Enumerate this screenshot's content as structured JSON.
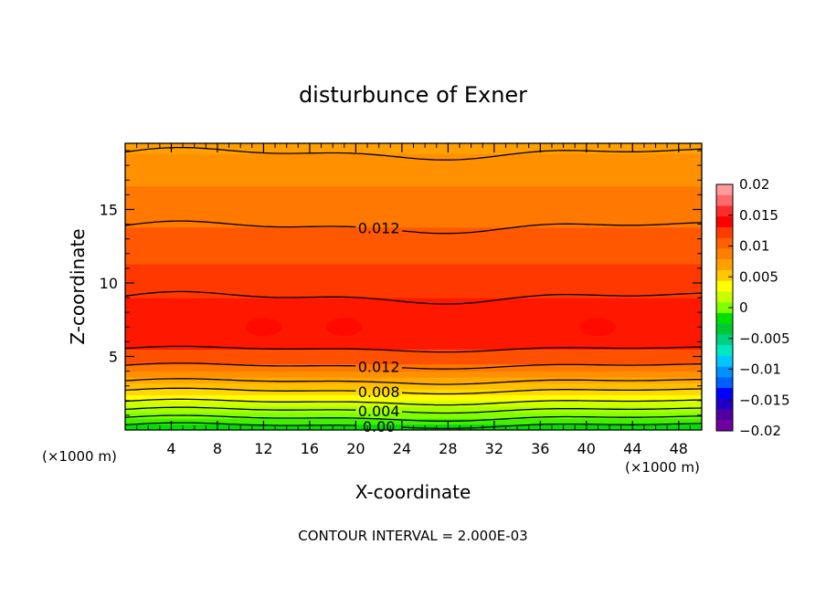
{
  "chart_data": {
    "type": "heatmap",
    "title": "disturbunce of Exner",
    "xlabel": "X-coordinate",
    "ylabel": "Z-coordinate",
    "x_unit": "(×1000 m)",
    "x_unit_right": "(×1000 m)",
    "xlim": [
      0,
      50
    ],
    "ylim": [
      0,
      19.5
    ],
    "x_ticks": [
      "4",
      "8",
      "12",
      "16",
      "20",
      "24",
      "28",
      "32",
      "36",
      "40",
      "44",
      "48"
    ],
    "y_ticks": [
      "5",
      "10",
      "15"
    ],
    "footer": "CONTOUR INTERVAL = 2.000E-03",
    "colorbar": {
      "labels": [
        "0.02",
        "0.015",
        "0.01",
        "0.005",
        "0",
        "−0.005",
        "−0.01",
        "−0.015",
        "−0.02"
      ],
      "values": [
        0.02,
        0.015,
        0.01,
        0.005,
        0,
        -0.005,
        -0.01,
        -0.015,
        -0.02
      ],
      "colors": [
        "#ff9a9a",
        "#ff6a6a",
        "#ff2a2a",
        "#ff0000",
        "#ff3c00",
        "#ff6000",
        "#ff8000",
        "#ffa000",
        "#ffc800",
        "#ffff00",
        "#c8ff00",
        "#80ff00",
        "#00e000",
        "#00c830",
        "#00d080",
        "#00e8c0",
        "#00c8ff",
        "#0090ff",
        "#0060ff",
        "#0000ff",
        "#2000c8",
        "#5000a0",
        "#7000a0"
      ]
    },
    "bands": [
      {
        "z": [
          0,
          0.4
        ],
        "color": "#00e000"
      },
      {
        "z": [
          0.4,
          0.8
        ],
        "color": "#40f000"
      },
      {
        "z": [
          0.8,
          1.2
        ],
        "color": "#80ff00"
      },
      {
        "z": [
          1.2,
          1.6
        ],
        "color": "#a8ff00"
      },
      {
        "z": [
          1.6,
          2.0
        ],
        "color": "#d0ff00"
      },
      {
        "z": [
          2.0,
          2.4
        ],
        "color": "#ffff00"
      },
      {
        "z": [
          2.4,
          2.8
        ],
        "color": "#ffd800"
      },
      {
        "z": [
          2.8,
          3.2
        ],
        "color": "#ffc000"
      },
      {
        "z": [
          3.2,
          3.6
        ],
        "color": "#ffa800"
      },
      {
        "z": [
          3.6,
          4.0
        ],
        "color": "#ff9000"
      },
      {
        "z": [
          4.0,
          4.5
        ],
        "color": "#ff7800"
      },
      {
        "z": [
          4.5,
          5.5
        ],
        "color": "#ff5000"
      },
      {
        "z": [
          5.5,
          9.0
        ],
        "color": "#ff1800"
      },
      {
        "z": [
          9.0,
          11.3
        ],
        "color": "#ff3800"
      },
      {
        "z": [
          11.3,
          13.8
        ],
        "color": "#ff5800"
      },
      {
        "z": [
          13.8,
          16.6
        ],
        "color": "#ff7800"
      },
      {
        "z": [
          16.6,
          18.8
        ],
        "color": "#ff9000"
      },
      {
        "z": [
          18.8,
          19.5
        ],
        "color": "#ffa000"
      }
    ],
    "contours": [
      {
        "z": 0.3,
        "label": "0.00"
      },
      {
        "z": 0.8,
        "label": ""
      },
      {
        "z": 1.35,
        "label": "0.004"
      },
      {
        "z": 1.9,
        "label": ""
      },
      {
        "z": 2.65,
        "label": "0.008"
      },
      {
        "z": 3.3,
        "label": ""
      },
      {
        "z": 4.35,
        "label": "0.012"
      },
      {
        "z": 5.5,
        "label": ""
      },
      {
        "z": 9.0,
        "label": ""
      },
      {
        "z": 13.8,
        "label": "0.012"
      },
      {
        "z": 18.8,
        "label": ""
      }
    ]
  }
}
